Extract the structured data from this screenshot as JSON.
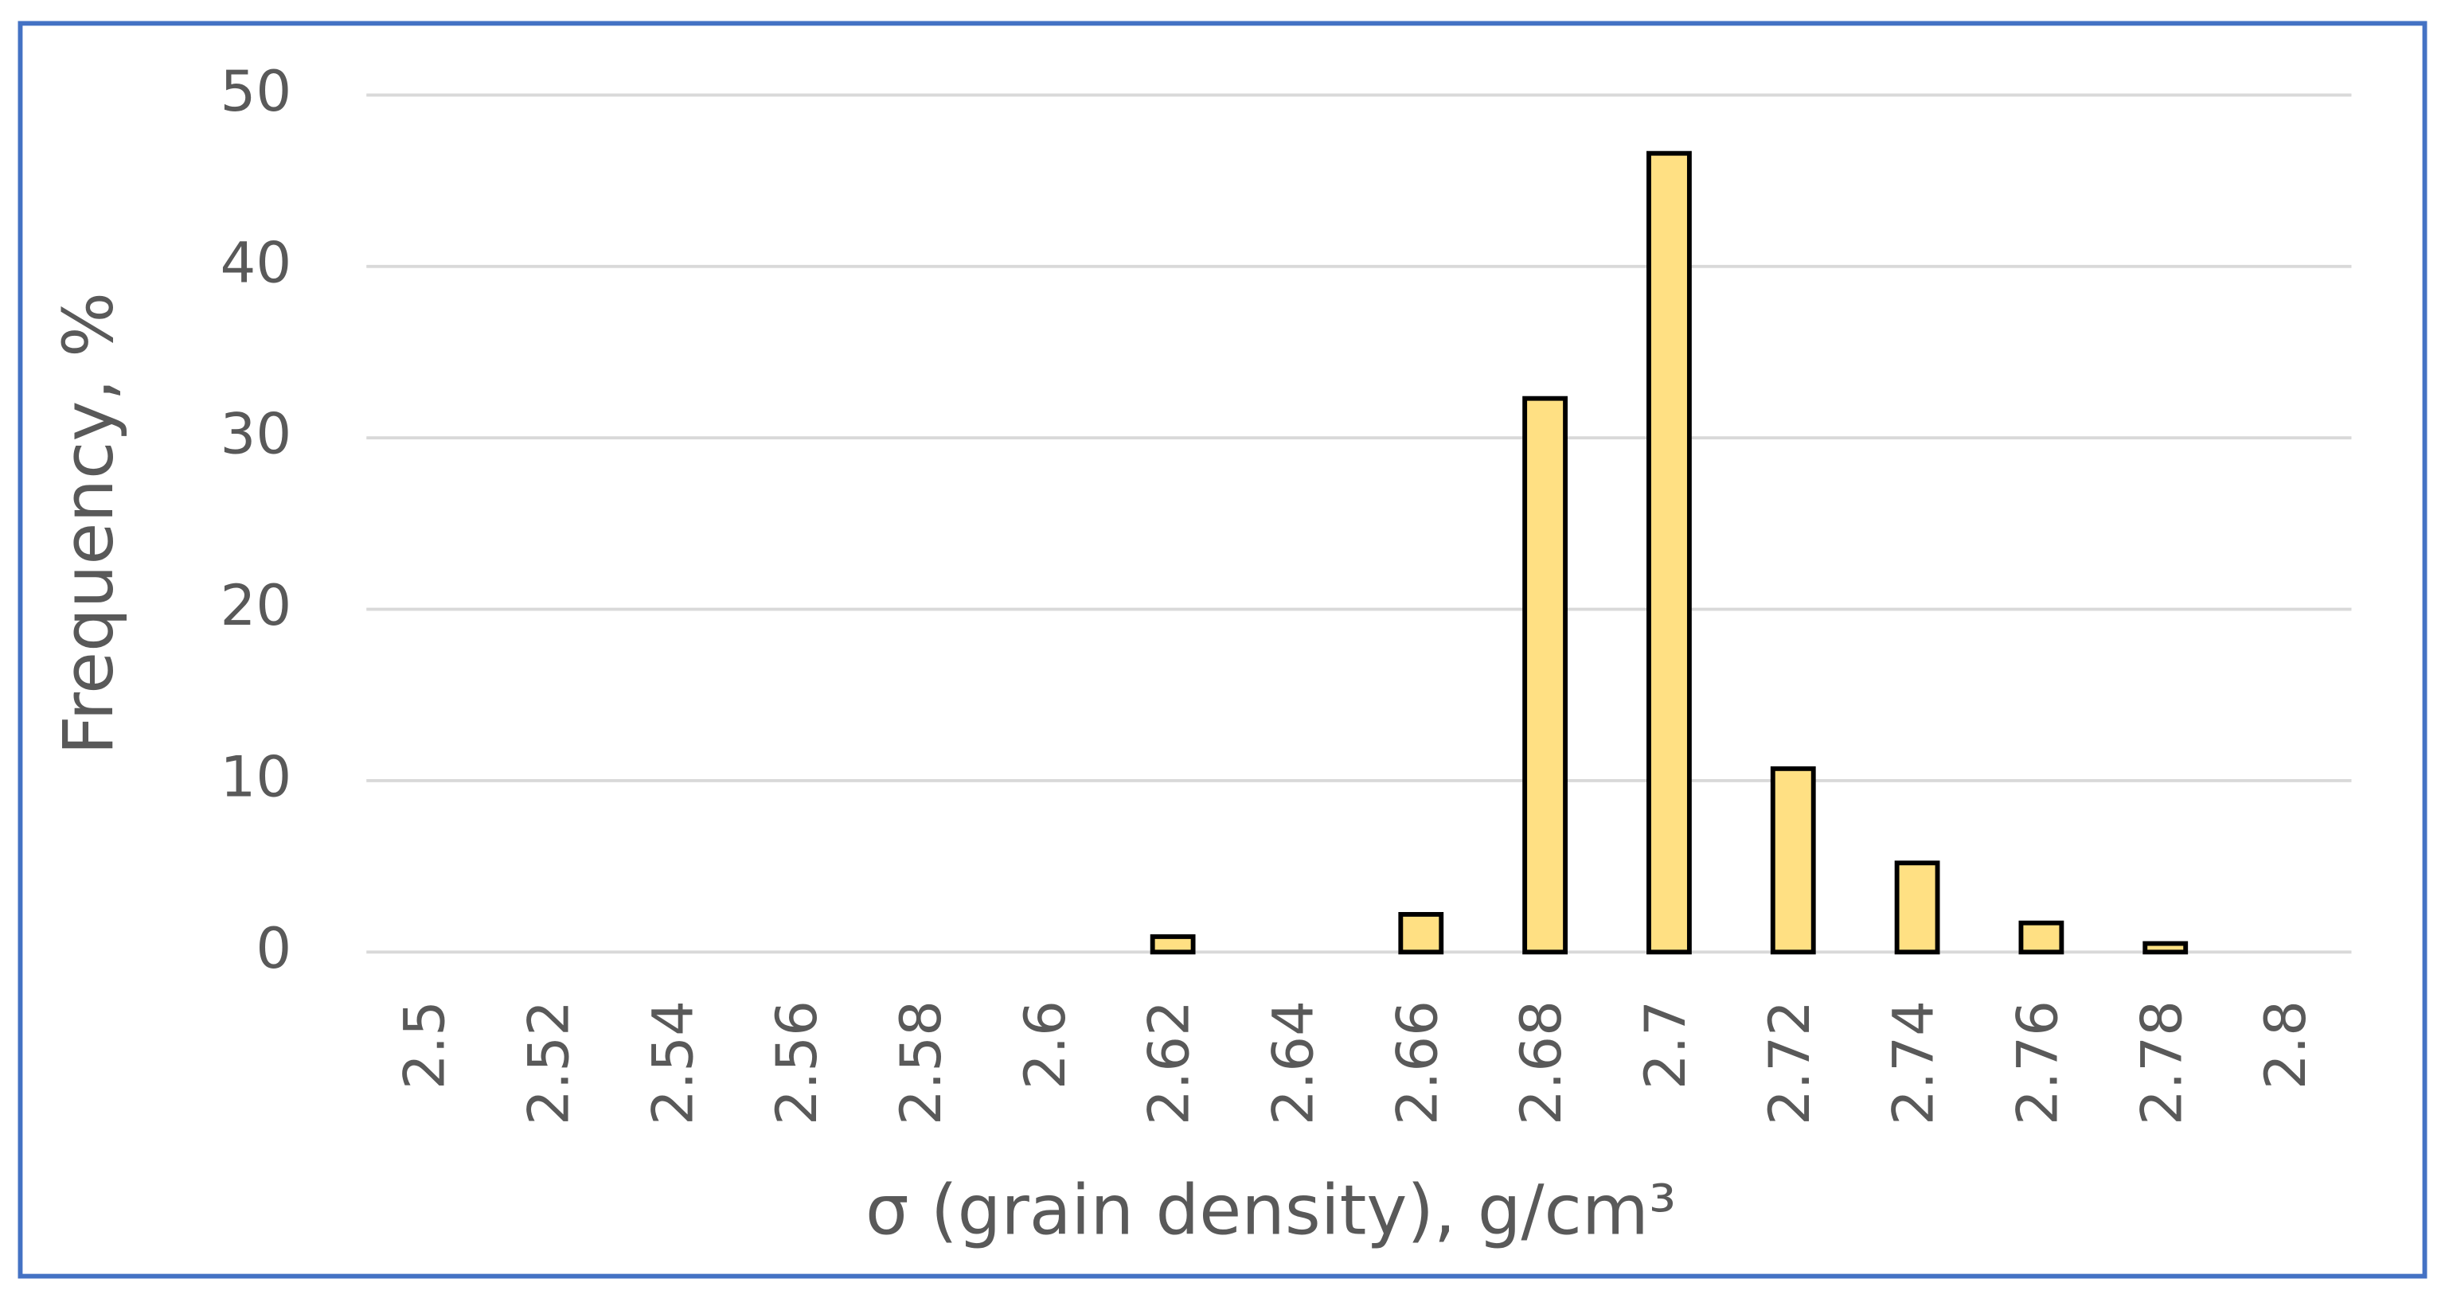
{
  "chart_data": {
    "type": "bar",
    "x_label": "σ (grain density), g/cm³",
    "y_label": "Frequency, %",
    "categories": [
      "2.5",
      "2.52",
      "2.54",
      "2.56",
      "2.58",
      "2.6",
      "2.62",
      "2.64",
      "2.66",
      "2.68",
      "2.7",
      "2.72",
      "2.74",
      "2.76",
      "2.78",
      "2.8"
    ],
    "values": [
      0,
      0,
      0,
      0,
      0,
      0,
      0.9,
      0,
      2.2,
      32.3,
      46.6,
      10.7,
      5.2,
      1.7,
      0.5,
      0
    ],
    "color": "#ffe083",
    "edgecolor": "#000000",
    "ylim": [
      0,
      50
    ],
    "yticks": [
      0,
      10,
      20,
      30,
      40,
      50
    ],
    "grid": true
  }
}
